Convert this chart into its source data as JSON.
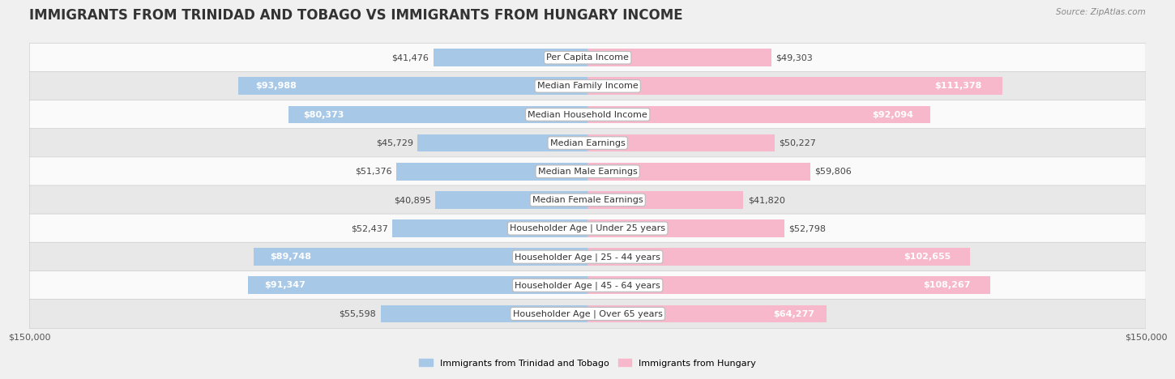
{
  "title": "IMMIGRANTS FROM TRINIDAD AND TOBAGO VS IMMIGRANTS FROM HUNGARY INCOME",
  "source": "Source: ZipAtlas.com",
  "categories": [
    "Per Capita Income",
    "Median Family Income",
    "Median Household Income",
    "Median Earnings",
    "Median Male Earnings",
    "Median Female Earnings",
    "Householder Age | Under 25 years",
    "Householder Age | 25 - 44 years",
    "Householder Age | 45 - 64 years",
    "Householder Age | Over 65 years"
  ],
  "left_values": [
    41476,
    93988,
    80373,
    45729,
    51376,
    40895,
    52437,
    89748,
    91347,
    55598
  ],
  "right_values": [
    49303,
    111378,
    92094,
    50227,
    59806,
    41820,
    52798,
    102655,
    108267,
    64277
  ],
  "left_labels": [
    "$41,476",
    "$93,988",
    "$80,373",
    "$45,729",
    "$51,376",
    "$40,895",
    "$52,437",
    "$89,748",
    "$91,347",
    "$55,598"
  ],
  "right_labels": [
    "$49,303",
    "$111,378",
    "$92,094",
    "$50,227",
    "$59,806",
    "$41,820",
    "$52,798",
    "$102,655",
    "$108,267",
    "$64,277"
  ],
  "left_color_light": "#a8c8e8",
  "left_color_dark": "#5a9fd4",
  "right_color_light": "#f8b8cc",
  "right_color_dark": "#e8608a",
  "max_value": 150000,
  "bar_height": 0.62,
  "bg_color": "#f0f0f0",
  "row_light": "#fafafa",
  "row_dark": "#e8e8e8",
  "legend_left": "Immigrants from Trinidad and Tobago",
  "legend_right": "Immigrants from Hungary",
  "title_fontsize": 12,
  "label_fontsize": 8,
  "category_fontsize": 8,
  "axis_fontsize": 8,
  "inside_threshold": 60000
}
